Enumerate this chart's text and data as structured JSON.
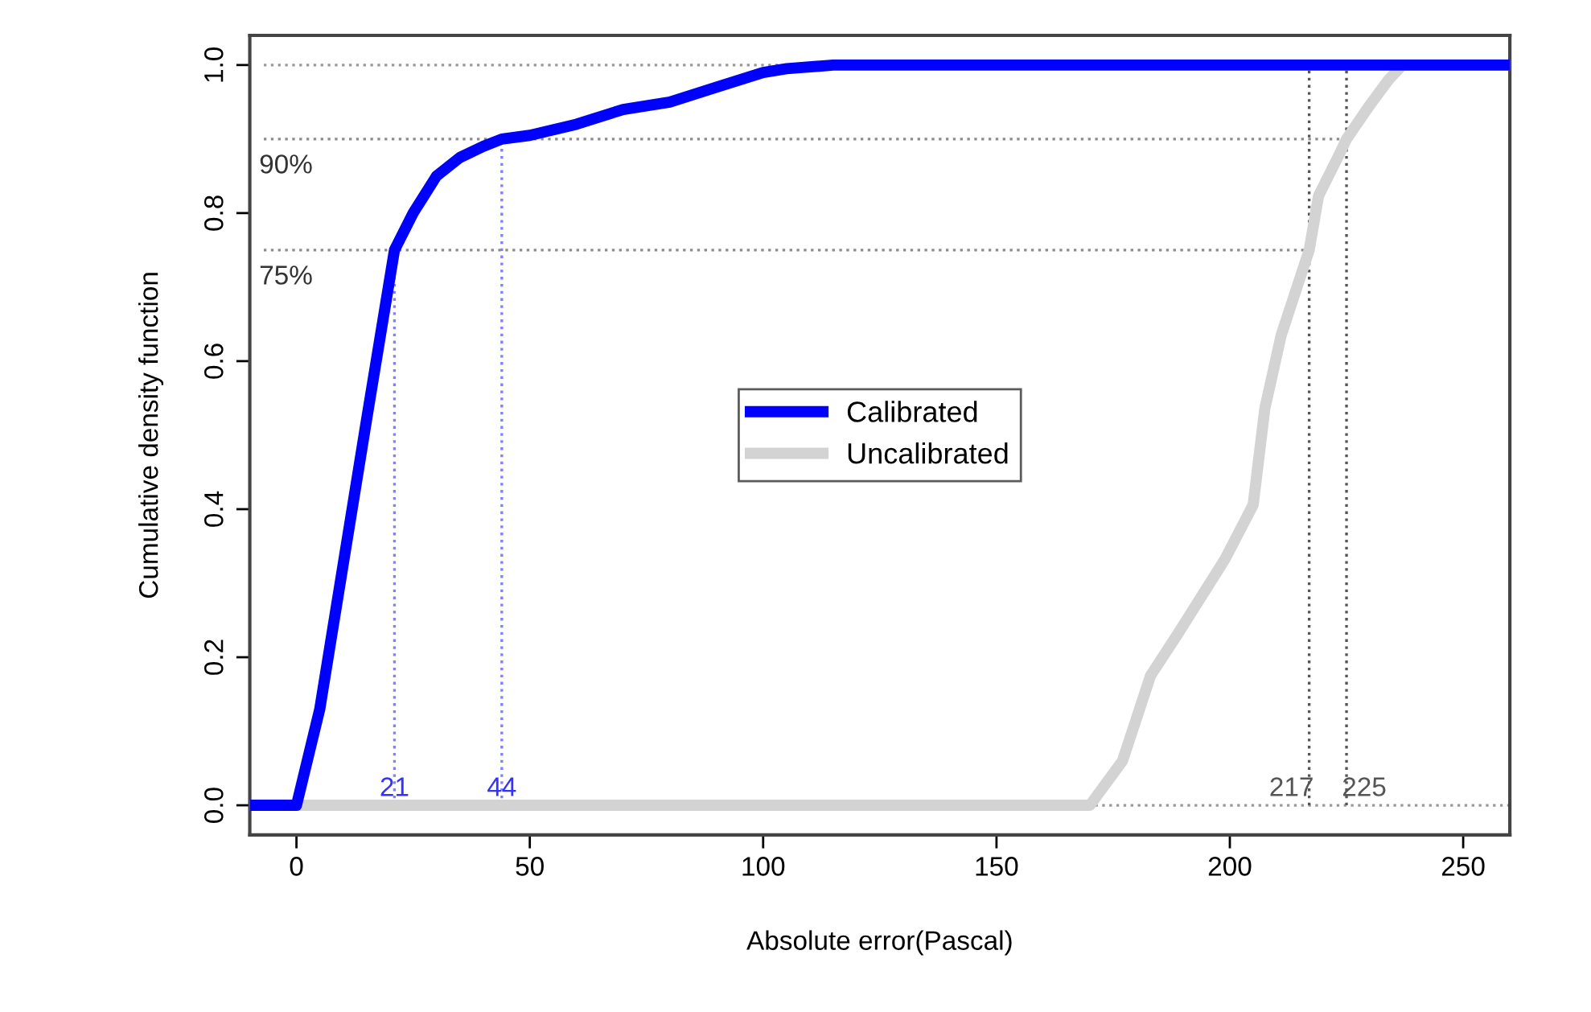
{
  "chart_data": {
    "type": "line",
    "xlabel": "Absolute error(Pascal)",
    "ylabel": "Cumulative density function",
    "xlim": [
      -10,
      260
    ],
    "ylim": [
      -0.04,
      1.04
    ],
    "xticks": [
      0,
      50,
      100,
      150,
      200,
      250
    ],
    "yticks": [
      {
        "value": 0,
        "label": "0.0"
      },
      {
        "value": 0.2,
        "label": "0.2"
      },
      {
        "value": 0.4,
        "label": "0.4"
      },
      {
        "value": 0.6,
        "label": "0.6"
      },
      {
        "value": 0.8,
        "label": "0.8"
      },
      {
        "value": 1,
        "label": "1.0"
      }
    ],
    "grid": false,
    "legend": "center",
    "marker": "none",
    "line_style": "solid",
    "series": [
      {
        "name": "Calibrated",
        "color": "#0000ff",
        "x": [
          -10,
          0,
          5,
          15,
          21,
          25,
          30,
          35,
          40,
          44,
          50,
          60,
          70,
          80,
          90,
          100,
          105,
          115,
          260
        ],
        "values": [
          0,
          0,
          0.13,
          0.52,
          0.75,
          0.8,
          0.85,
          0.875,
          0.89,
          0.9,
          0.905,
          0.92,
          0.94,
          0.95,
          0.97,
          0.99,
          0.995,
          1,
          1
        ]
      },
      {
        "name": "Uncalibrated",
        "color": "#d3d3d3",
        "x": [
          -10,
          170,
          177,
          183,
          189,
          199,
          205,
          207.5,
          211,
          217,
          219,
          223.5,
          225,
          230,
          234,
          237,
          260
        ],
        "values": [
          0,
          0,
          0.06,
          0.175,
          0.233,
          0.333,
          0.406,
          0.536,
          0.635,
          0.75,
          0.823,
          0.88,
          0.9,
          0.946,
          0.98,
          1,
          1
        ]
      }
    ],
    "ref_lines": [
      {
        "axis": "y",
        "value": 1,
        "color": "#999999",
        "line_style": "dotted"
      },
      {
        "axis": "y",
        "value": 0,
        "color": "#999999",
        "line_style": "dotted"
      },
      {
        "axis": "y",
        "value": 0.9,
        "label": "90%",
        "color": "#8c8c8c",
        "line_style": "dotted"
      },
      {
        "axis": "y",
        "value": 0.75,
        "label": "75%",
        "color": "#8c8c8c",
        "line_style": "dotted"
      },
      {
        "axis": "x",
        "value": 21,
        "label": "21",
        "color": "#7f7fff",
        "line_style": "dotted"
      },
      {
        "axis": "x",
        "value": 44,
        "label": "44",
        "color": "#7f7fff",
        "line_style": "dotted"
      },
      {
        "axis": "x",
        "value": 217,
        "label": "217",
        "color": "#555555",
        "line_style": "dotted"
      },
      {
        "axis": "x",
        "value": 225,
        "label": "225",
        "color": "#555555",
        "line_style": "dotted"
      }
    ]
  }
}
